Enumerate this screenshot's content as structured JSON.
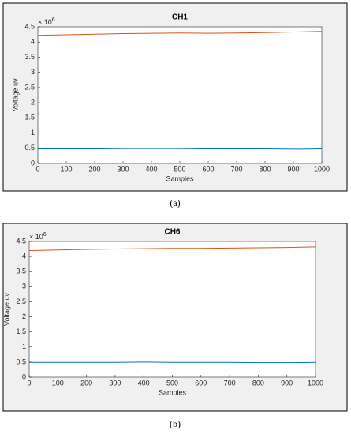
{
  "chart_data": [
    {
      "type": "line",
      "title": "CH1",
      "xlabel": "Samples",
      "ylabel": "Voltage uv",
      "y_multiplier": "× 10",
      "y_multiplier_exp": "6",
      "caption": "(a)",
      "x": [
        0,
        100,
        200,
        300,
        400,
        500,
        600,
        700,
        800,
        900,
        1000
      ],
      "series": [
        {
          "color": "#d95319",
          "values": [
            4.22,
            4.24,
            4.26,
            4.28,
            4.29,
            4.3,
            4.29,
            4.3,
            4.31,
            4.33,
            4.35
          ]
        },
        {
          "color": "#0072bd",
          "values": [
            0.48,
            0.48,
            0.48,
            0.49,
            0.49,
            0.49,
            0.48,
            0.48,
            0.48,
            0.47,
            0.48
          ]
        }
      ],
      "xlim": [
        0,
        1000
      ],
      "xticks": [
        0,
        100,
        200,
        300,
        400,
        500,
        600,
        700,
        800,
        900,
        1000
      ],
      "ylim": [
        0,
        4.5
      ],
      "yticks": [
        0,
        0.5,
        1,
        1.5,
        2,
        2.5,
        3,
        3.5,
        4,
        4.5
      ],
      "grid": false
    },
    {
      "type": "line",
      "title": "CH6",
      "xlabel": "Samples",
      "ylabel": "Voltage uv",
      "y_multiplier": "× 10",
      "y_multiplier_exp": "6",
      "caption": "(b)",
      "x": [
        0,
        100,
        200,
        300,
        400,
        500,
        600,
        700,
        800,
        900,
        1000
      ],
      "series": [
        {
          "color": "#d95319",
          "values": [
            4.2,
            4.22,
            4.24,
            4.25,
            4.26,
            4.27,
            4.27,
            4.28,
            4.29,
            4.3,
            4.32
          ]
        },
        {
          "color": "#0072bd",
          "values": [
            0.49,
            0.49,
            0.49,
            0.49,
            0.5,
            0.49,
            0.49,
            0.49,
            0.48,
            0.48,
            0.49
          ]
        }
      ],
      "xlim": [
        0,
        1000
      ],
      "xticks": [
        0,
        100,
        200,
        300,
        400,
        500,
        600,
        700,
        800,
        900,
        1000
      ],
      "ylim": [
        0,
        4.5
      ],
      "yticks": [
        0,
        0.5,
        1,
        1.5,
        2,
        2.5,
        3,
        3.5,
        4,
        4.5
      ],
      "grid": false
    }
  ]
}
